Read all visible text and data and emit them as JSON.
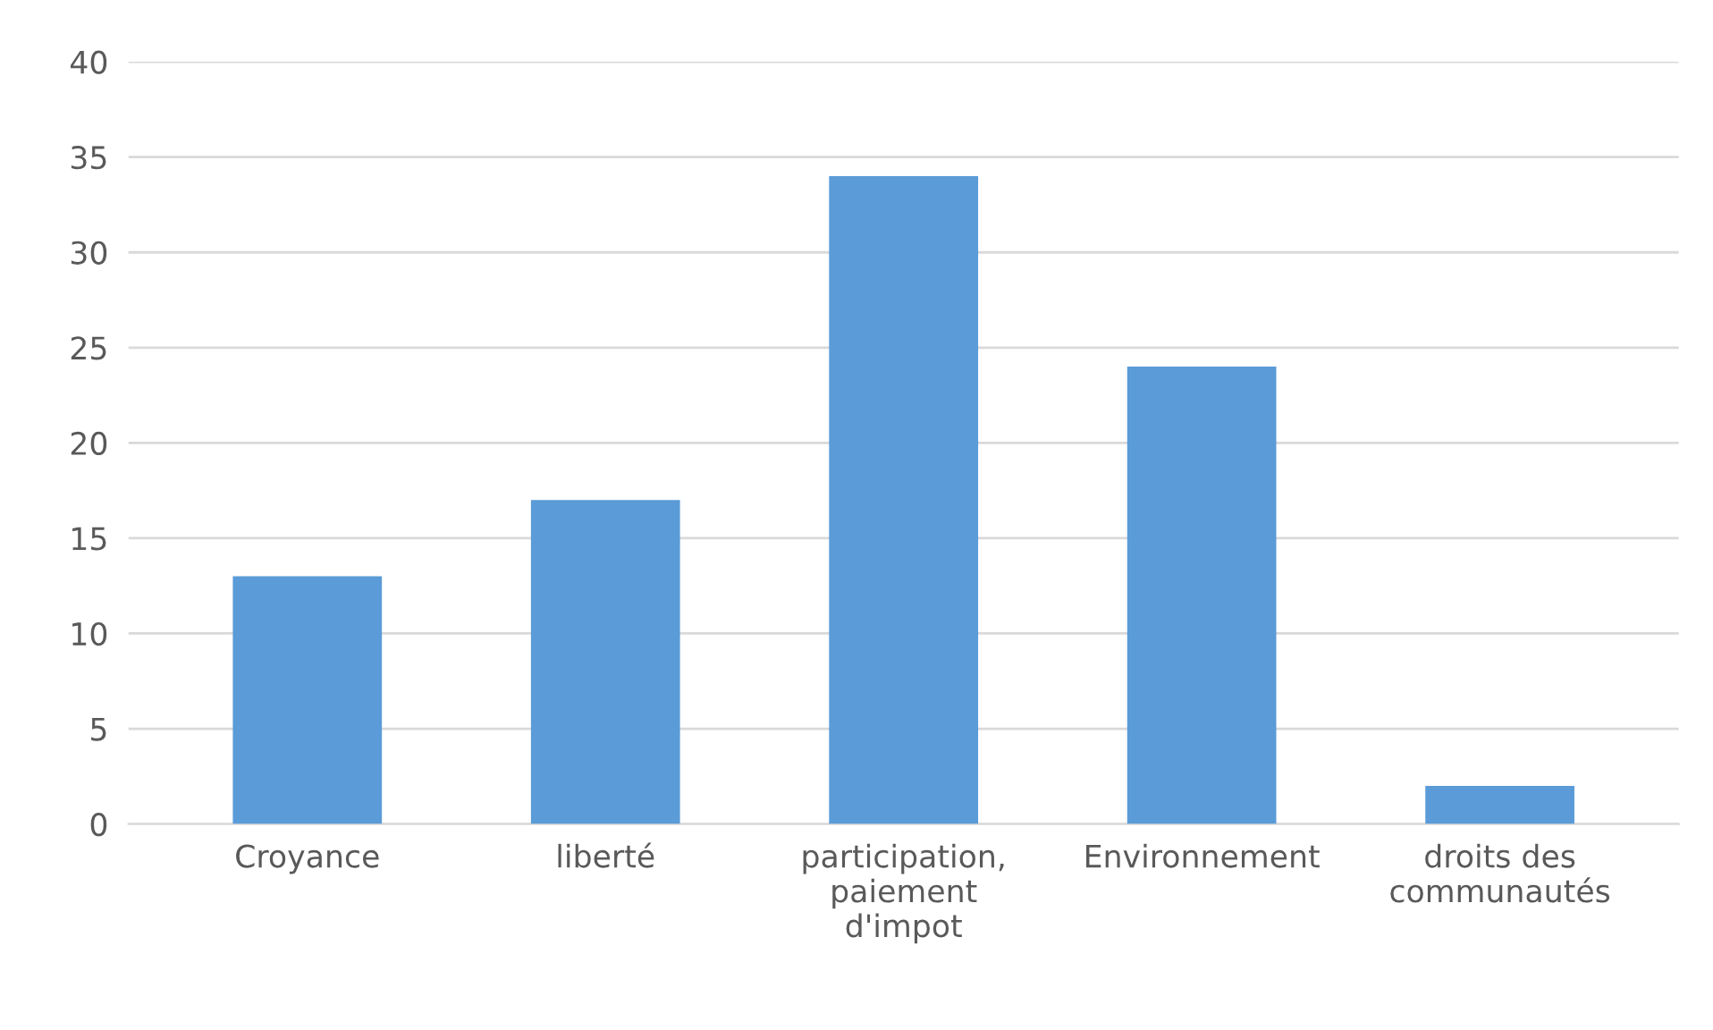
{
  "chart_data": {
    "type": "bar",
    "categories": [
      "Croyance",
      "liberté",
      "participation, paiement d'impot",
      "Environnement",
      "droits des communautés"
    ],
    "values": [
      13,
      17,
      34,
      24,
      2
    ],
    "color": "#5a9bd8",
    "ylim": [
      0,
      40
    ],
    "yticks": [
      0,
      5,
      10,
      15,
      20,
      25,
      30,
      35,
      40
    ],
    "grid": "y"
  }
}
